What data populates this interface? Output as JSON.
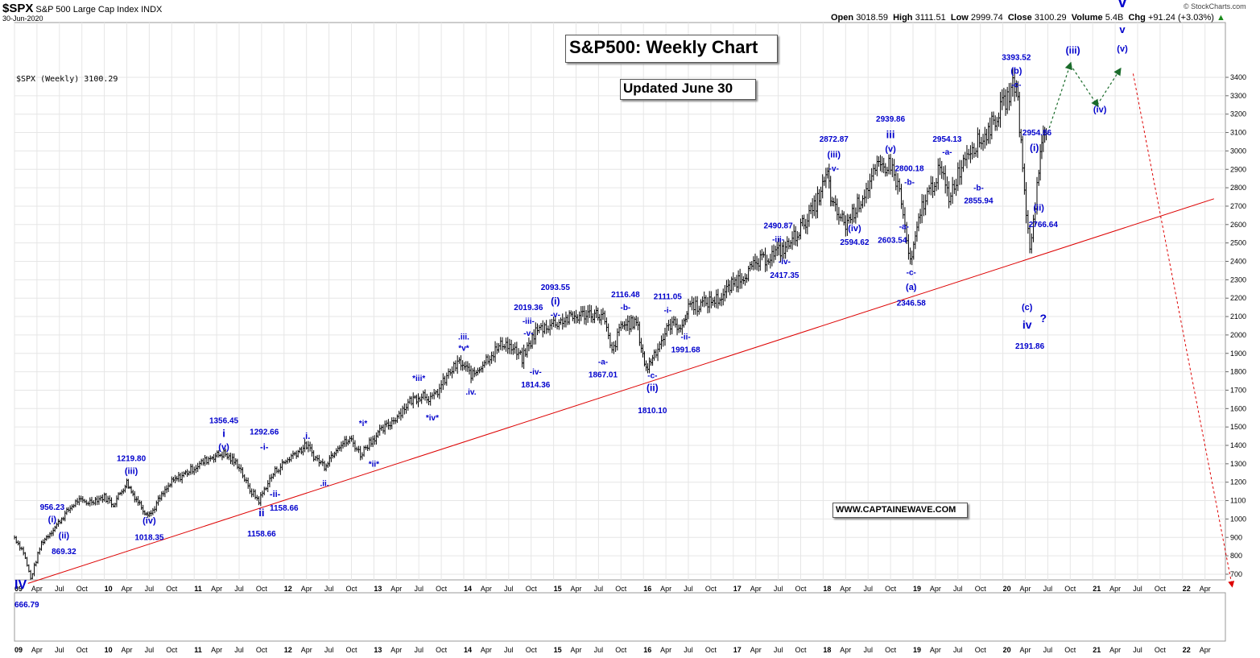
{
  "header": {
    "symbol": "$SPX",
    "description": "S&P 500 Large Cap Index",
    "exchange": "INDX",
    "date": "30-Jun-2020",
    "open_label": "Open",
    "open": "3018.59",
    "high_label": "High",
    "high": "3111.51",
    "low_label": "Low",
    "low": "2999.74",
    "close_label": "Close",
    "close": "3100.29",
    "volume_label": "Volume",
    "volume": "5.4B",
    "chg_label": "Chg",
    "chg": "+91.24 (+3.03%)",
    "watermark": "© StockCharts.com"
  },
  "legend": "$SPX (Weekly) 3100.29",
  "title_box": "S&P500: Weekly Chart",
  "updated_box": "Updated June 30",
  "website_box": "WWW.CAPTAINEWAVE.COM",
  "colors": {
    "annotation": "#0000cc",
    "trendline": "#dd0000",
    "projection": "#1a6b2a",
    "projection_crash": "#dd0000",
    "bars": "#000000",
    "grid": "#e6e6e6"
  },
  "chart_data": {
    "type": "line",
    "title": "S&P500: Weekly Chart",
    "series": [
      {
        "name": "$SPX (Weekly)",
        "x": [
          2009.0,
          2009.1,
          2009.18,
          2009.3,
          2009.45,
          2009.6,
          2009.7,
          2009.8,
          2010.0,
          2010.1,
          2010.25,
          2010.3,
          2010.45,
          2010.52,
          2010.6,
          2010.75,
          2011.0,
          2011.2,
          2011.33,
          2011.5,
          2011.6,
          2011.72,
          2011.8,
          2011.9,
          2012.1,
          2012.25,
          2012.35,
          2012.45,
          2012.6,
          2012.75,
          2012.85,
          2012.95,
          2013.2,
          2013.4,
          2013.55,
          2013.65,
          2013.85,
          2013.95,
          2014.1,
          2014.25,
          2014.45,
          2014.55,
          2014.65,
          2014.8,
          2014.92,
          2015.1,
          2015.4,
          2015.55,
          2015.65,
          2015.75,
          2015.92,
          2016.03,
          2016.12,
          2016.3,
          2016.45,
          2016.5,
          2016.6,
          2016.85,
          2017.0,
          2017.3,
          2017.6,
          2017.9,
          2018.05,
          2018.1,
          2018.25,
          2018.4,
          2018.6,
          2018.75,
          2018.85,
          2018.97,
          2019.1,
          2019.3,
          2019.4,
          2019.6,
          2019.8,
          2020.05,
          2020.15,
          2020.22,
          2020.3,
          2020.4,
          2020.45,
          2020.5
        ],
        "y": [
          900,
          820,
          676,
          870,
          956,
          1050,
          1100,
          1090,
          1120,
          1080,
          1200,
          1150,
          1040,
          1030,
          1100,
          1200,
          1280,
          1340,
          1356,
          1290,
          1170,
          1099,
          1180,
          1260,
          1350,
          1400,
          1330,
          1290,
          1400,
          1430,
          1350,
          1420,
          1530,
          1640,
          1680,
          1650,
          1800,
          1850,
          1780,
          1870,
          1960,
          1920,
          1870,
          2020,
          2050,
          2080,
          2120,
          2100,
          1900,
          2050,
          2070,
          1810,
          1900,
          2060,
          2050,
          2170,
          2160,
          2200,
          2280,
          2400,
          2480,
          2690,
          2870,
          2700,
          2600,
          2720,
          2900,
          2930,
          2780,
          2380,
          2700,
          2900,
          2750,
          3000,
          3080,
          3290,
          3390,
          2900,
          2450,
          2900,
          3100,
          3100
        ],
        "note": "approximate close path"
      }
    ],
    "xlabel": "",
    "ylabel": "",
    "ylim": [
      650,
      3450
    ],
    "xlim": [
      2009.0,
      2022.3
    ],
    "y_ticks": [
      700,
      800,
      900,
      1000,
      1100,
      1200,
      1300,
      1400,
      1500,
      1600,
      1700,
      1800,
      1900,
      2000,
      2100,
      2200,
      2300,
      2400,
      2500,
      2600,
      2700,
      2800,
      2900,
      3000,
      3100,
      3200,
      3300,
      3400
    ],
    "x_ticks": [
      {
        "t": 2009.0,
        "label": "09",
        "bold": true
      },
      {
        "t": 2009.25,
        "label": "Apr"
      },
      {
        "t": 2009.5,
        "label": "Jul"
      },
      {
        "t": 2009.75,
        "label": "Oct"
      },
      {
        "t": 2010.0,
        "label": "10",
        "bold": true
      },
      {
        "t": 2010.25,
        "label": "Apr"
      },
      {
        "t": 2010.5,
        "label": "Jul"
      },
      {
        "t": 2010.75,
        "label": "Oct"
      },
      {
        "t": 2011.0,
        "label": "11",
        "bold": true
      },
      {
        "t": 2011.25,
        "label": "Apr"
      },
      {
        "t": 2011.5,
        "label": "Jul"
      },
      {
        "t": 2011.75,
        "label": "Oct"
      },
      {
        "t": 2012.0,
        "label": "12",
        "bold": true
      },
      {
        "t": 2012.25,
        "label": "Apr"
      },
      {
        "t": 2012.5,
        "label": "Jul"
      },
      {
        "t": 2012.75,
        "label": "Oct"
      },
      {
        "t": 2013.0,
        "label": "13",
        "bold": true
      },
      {
        "t": 2013.25,
        "label": "Apr"
      },
      {
        "t": 2013.5,
        "label": "Jul"
      },
      {
        "t": 2013.75,
        "label": "Oct"
      },
      {
        "t": 2014.0,
        "label": "14",
        "bold": true
      },
      {
        "t": 2014.25,
        "label": "Apr"
      },
      {
        "t": 2014.5,
        "label": "Jul"
      },
      {
        "t": 2014.75,
        "label": "Oct"
      },
      {
        "t": 2015.0,
        "label": "15",
        "bold": true
      },
      {
        "t": 2015.25,
        "label": "Apr"
      },
      {
        "t": 2015.5,
        "label": "Jul"
      },
      {
        "t": 2015.75,
        "label": "Oct"
      },
      {
        "t": 2016.0,
        "label": "16",
        "bold": true
      },
      {
        "t": 2016.25,
        "label": "Apr"
      },
      {
        "t": 2016.5,
        "label": "Jul"
      },
      {
        "t": 2016.75,
        "label": "Oct"
      },
      {
        "t": 2017.0,
        "label": "17",
        "bold": true
      },
      {
        "t": 2017.25,
        "label": "Apr"
      },
      {
        "t": 2017.5,
        "label": "Jul"
      },
      {
        "t": 2017.75,
        "label": "Oct"
      },
      {
        "t": 2018.0,
        "label": "18",
        "bold": true
      },
      {
        "t": 2018.25,
        "label": "Apr"
      },
      {
        "t": 2018.5,
        "label": "Jul"
      },
      {
        "t": 2018.75,
        "label": "Oct"
      },
      {
        "t": 2019.0,
        "label": "19",
        "bold": true
      },
      {
        "t": 2019.25,
        "label": "Apr"
      },
      {
        "t": 2019.5,
        "label": "Jul"
      },
      {
        "t": 2019.75,
        "label": "Oct"
      },
      {
        "t": 2020.0,
        "label": "20",
        "bold": true
      },
      {
        "t": 2020.25,
        "label": "Apr"
      },
      {
        "t": 2020.5,
        "label": "Jul"
      },
      {
        "t": 2020.75,
        "label": "Oct"
      },
      {
        "t": 2021.0,
        "label": "21",
        "bold": true
      },
      {
        "t": 2021.25,
        "label": "Apr"
      },
      {
        "t": 2021.5,
        "label": "Jul"
      },
      {
        "t": 2021.75,
        "label": "Oct"
      },
      {
        "t": 2022.0,
        "label": "22",
        "bold": true
      },
      {
        "t": 2022.25,
        "label": "Apr"
      }
    ],
    "trendline": {
      "t1": 2009.15,
      "v1": 650,
      "t2": 2022.35,
      "v2": 2740
    },
    "projection": [
      {
        "t": 2020.5,
        "v": 3100
      },
      {
        "t": 2020.75,
        "v": 3470
      },
      {
        "t": 2021.05,
        "v": 3250
      },
      {
        "t": 2021.3,
        "v": 3440
      }
    ],
    "crash_projection": {
      "t1": 2021.45,
      "v1": 3420,
      "t2": 2022.55,
      "v2": 640
    },
    "annotations": [
      {
        "t": 2009.0,
        "v": 620,
        "text": "IV",
        "size": 16
      },
      {
        "t": 2009.0,
        "v": 520,
        "text": "666.79",
        "size": 10
      },
      {
        "t": 2009.42,
        "v": 1050,
        "text": "956.23",
        "size": 10
      },
      {
        "t": 2009.42,
        "v": 982,
        "text": "(i)",
        "size": 11
      },
      {
        "t": 2009.55,
        "v": 895,
        "text": "(ii)",
        "size": 11
      },
      {
        "t": 2009.55,
        "v": 810,
        "text": "869.32",
        "size": 10
      },
      {
        "t": 2010.3,
        "v": 1315,
        "text": "1219.80",
        "size": 10
      },
      {
        "t": 2010.3,
        "v": 1245,
        "text": "(iii)",
        "size": 11
      },
      {
        "t": 2010.5,
        "v": 975,
        "text": "(iv)",
        "size": 11
      },
      {
        "t": 2010.5,
        "v": 885,
        "text": "1018.35",
        "size": 10
      },
      {
        "t": 2011.33,
        "v": 1520,
        "text": "1356.45",
        "size": 10
      },
      {
        "t": 2011.33,
        "v": 1445,
        "text": "i",
        "size": 13
      },
      {
        "t": 2011.33,
        "v": 1375,
        "text": "(v)",
        "size": 11
      },
      {
        "t": 2011.78,
        "v": 1460,
        "text": "1292.66",
        "size": 10
      },
      {
        "t": 2011.78,
        "v": 1375,
        "text": "-i-",
        "size": 11
      },
      {
        "t": 2011.9,
        "v": 1120,
        "text": "-ii-",
        "size": 11
      },
      {
        "t": 2012.0,
        "v": 1045,
        "text": "1158.66",
        "size": 10
      },
      {
        "t": 2011.75,
        "v": 1015,
        "text": "ii",
        "size": 13
      },
      {
        "t": 2011.75,
        "v": 905,
        "text": "1158.66",
        "size": 10
      },
      {
        "t": 2012.25,
        "v": 1435,
        "text": ".i.",
        "size": 11
      },
      {
        "t": 2012.45,
        "v": 1180,
        "text": ".ii.",
        "size": 10
      },
      {
        "t": 2012.88,
        "v": 1505,
        "text": "*i*",
        "size": 10
      },
      {
        "t": 2013.0,
        "v": 1285,
        "text": "*ii*",
        "size": 10
      },
      {
        "t": 2013.5,
        "v": 1750,
        "text": "*iii*",
        "size": 10
      },
      {
        "t": 2013.65,
        "v": 1535,
        "text": "*iv*",
        "size": 10
      },
      {
        "t": 2014.0,
        "v": 1975,
        "text": ".iii.",
        "size": 10
      },
      {
        "t": 2014.0,
        "v": 1915,
        "text": "*v*",
        "size": 10
      },
      {
        "t": 2014.08,
        "v": 1675,
        "text": ".iv.",
        "size": 10
      },
      {
        "t": 2014.72,
        "v": 2135,
        "text": "2019.36",
        "size": 10
      },
      {
        "t": 2014.72,
        "v": 2060,
        "text": "-iii-",
        "size": 10
      },
      {
        "t": 2014.72,
        "v": 1995,
        "text": "-v-",
        "size": 10
      },
      {
        "t": 2014.8,
        "v": 1785,
        "text": "-iv-",
        "size": 10
      },
      {
        "t": 2014.8,
        "v": 1715,
        "text": "1814.36",
        "size": 10
      },
      {
        "t": 2015.02,
        "v": 2245,
        "text": "2093.55",
        "size": 10
      },
      {
        "t": 2015.02,
        "v": 2165,
        "text": "(i)",
        "size": 12
      },
      {
        "t": 2015.02,
        "v": 2095,
        "text": "-v-",
        "size": 10
      },
      {
        "t": 2015.8,
        "v": 2205,
        "text": "2116.48",
        "size": 10
      },
      {
        "t": 2015.8,
        "v": 2135,
        "text": "-b-",
        "size": 10
      },
      {
        "t": 2015.55,
        "v": 1840,
        "text": "-a-",
        "size": 10
      },
      {
        "t": 2015.55,
        "v": 1770,
        "text": "1867.01",
        "size": 10
      },
      {
        "t": 2016.1,
        "v": 1765,
        "text": "-c-",
        "size": 10
      },
      {
        "t": 2016.1,
        "v": 1695,
        "text": "(ii)",
        "size": 12
      },
      {
        "t": 2016.1,
        "v": 1575,
        "text": "1810.10",
        "size": 10
      },
      {
        "t": 2016.27,
        "v": 2195,
        "text": "2111.05",
        "size": 10
      },
      {
        "t": 2016.27,
        "v": 2120,
        "text": "-i-",
        "size": 10
      },
      {
        "t": 2016.47,
        "v": 1975,
        "text": "-ii-",
        "size": 10
      },
      {
        "t": 2016.47,
        "v": 1905,
        "text": "1991.68",
        "size": 10
      },
      {
        "t": 2017.5,
        "v": 2580,
        "text": "2490.87",
        "size": 10
      },
      {
        "t": 2017.5,
        "v": 2505,
        "text": "-iii-",
        "size": 10
      },
      {
        "t": 2017.57,
        "v": 2385,
        "text": "-iv-",
        "size": 10
      },
      {
        "t": 2017.57,
        "v": 2310,
        "text": "2417.35",
        "size": 10
      },
      {
        "t": 2018.12,
        "v": 3050,
        "text": "2872.87",
        "size": 10
      },
      {
        "t": 2018.12,
        "v": 2965,
        "text": "(iii)",
        "size": 11
      },
      {
        "t": 2018.12,
        "v": 2890,
        "text": "-v-",
        "size": 10
      },
      {
        "t": 2018.35,
        "v": 2565,
        "text": "(iv)",
        "size": 11
      },
      {
        "t": 2018.35,
        "v": 2490,
        "text": "2594.62",
        "size": 10
      },
      {
        "t": 2018.75,
        "v": 3160,
        "text": "2939.86",
        "size": 10
      },
      {
        "t": 2018.75,
        "v": 3070,
        "text": "iii",
        "size": 13
      },
      {
        "t": 2018.75,
        "v": 2995,
        "text": "(v)",
        "size": 11
      },
      {
        "t": 2018.96,
        "v": 2890,
        "text": "2800.18",
        "size": 10
      },
      {
        "t": 2018.96,
        "v": 2815,
        "text": "-b-",
        "size": 10
      },
      {
        "t": 2018.9,
        "v": 2575,
        "text": "-a-",
        "size": 10
      },
      {
        "t": 2018.77,
        "v": 2500,
        "text": "2603.54",
        "size": 10
      },
      {
        "t": 2018.98,
        "v": 2325,
        "text": "-c-",
        "size": 10
      },
      {
        "t": 2018.98,
        "v": 2245,
        "text": "(a)",
        "size": 11
      },
      {
        "t": 2018.98,
        "v": 2160,
        "text": "2346.58",
        "size": 10
      },
      {
        "t": 2019.38,
        "v": 3050,
        "text": "2954.13",
        "size": 10
      },
      {
        "t": 2019.38,
        "v": 2980,
        "text": "-a-",
        "size": 10
      },
      {
        "t": 2019.73,
        "v": 2785,
        "text": "-b-",
        "size": 10
      },
      {
        "t": 2019.73,
        "v": 2715,
        "text": "2855.94",
        "size": 10
      },
      {
        "t": 2020.15,
        "v": 3495,
        "text": "3393.52",
        "size": 10
      },
      {
        "t": 2020.15,
        "v": 3420,
        "text": "(b)",
        "size": 11
      },
      {
        "t": 2020.15,
        "v": 3345,
        "text": "-c-",
        "size": 10
      },
      {
        "t": 2020.38,
        "v": 3085,
        "text": "2954.86",
        "size": 10
      },
      {
        "t": 2020.35,
        "v": 3000,
        "text": "(i)",
        "size": 12
      },
      {
        "t": 2020.4,
        "v": 2675,
        "text": "(ii)",
        "size": 11
      },
      {
        "t": 2020.45,
        "v": 2585,
        "text": "2766.64",
        "size": 10
      },
      {
        "t": 2020.27,
        "v": 2135,
        "text": "(c)",
        "size": 11
      },
      {
        "t": 2020.27,
        "v": 2035,
        "text": "iv",
        "size": 14
      },
      {
        "t": 2020.45,
        "v": 2070,
        "text": "?",
        "size": 14
      },
      {
        "t": 2020.3,
        "v": 1925,
        "text": "2191.86",
        "size": 10
      },
      {
        "t": 2020.78,
        "v": 3530,
        "text": "(iii)",
        "size": 12
      },
      {
        "t": 2021.08,
        "v": 3210,
        "text": "(iv)",
        "size": 11
      },
      {
        "t": 2021.33,
        "v": 3780,
        "text": "V",
        "size": 20
      },
      {
        "t": 2021.33,
        "v": 3640,
        "text": "v",
        "size": 13
      },
      {
        "t": 2021.33,
        "v": 3540,
        "text": "(v)",
        "size": 11
      }
    ]
  }
}
